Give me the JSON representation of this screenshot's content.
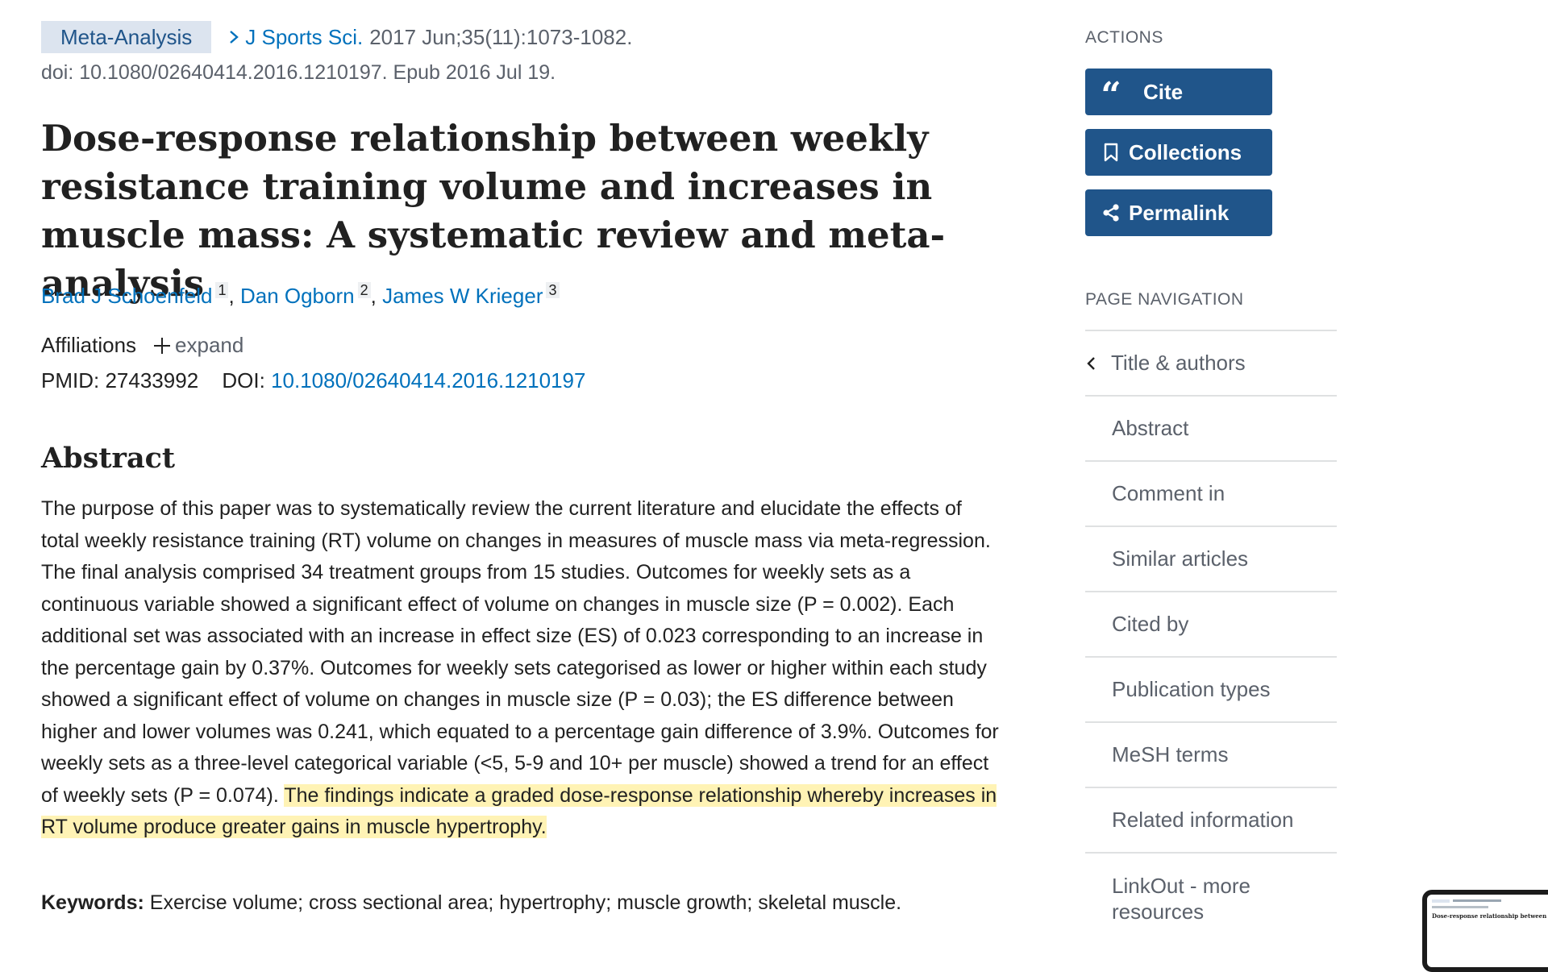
{
  "citation": {
    "publication_type": "Meta-Analysis",
    "journal": "J Sports Sci.",
    "journal_info": "2017 Jun;35(11):1073-1082.",
    "doi_line": "doi: 10.1080/02640414.2016.1210197. Epub 2016 Jul 19."
  },
  "title": "Dose-response relationship between weekly resistance training volume and increases in muscle mass: A systematic review and meta-analysis",
  "authors": [
    {
      "name": "Brad J Schoenfeld",
      "affiliation": "1"
    },
    {
      "name": "Dan Ogborn",
      "affiliation": "2"
    },
    {
      "name": "James W Krieger",
      "affiliation": "3"
    }
  ],
  "author_separator": ",",
  "affiliations": {
    "label": "Affiliations",
    "expand": "expand"
  },
  "identifiers": {
    "pmid_label": "PMID:",
    "pmid": "27433992",
    "doi_label": "DOI:",
    "doi": "10.1080/02640414.2016.1210197"
  },
  "abstract": {
    "heading": "Abstract",
    "text": "The purpose of this paper was to systematically review the current literature and elucidate the effects of total weekly resistance training (RT) volume on changes in measures of muscle mass via meta-regression. The final analysis comprised 34 treatment groups from 15 studies. Outcomes for weekly sets as a continuous variable showed a significant effect of volume on changes in muscle size (P = 0.002). Each additional set was associated with an increase in effect size (ES) of 0.023 corresponding to an increase in the percentage gain by 0.37%. Outcomes for weekly sets categorised as lower or higher within each study showed a significant effect of volume on changes in muscle size (P = 0.03); the ES difference between higher and lower volumes was 0.241, which equated to a percentage gain difference of 3.9%. Outcomes for weekly sets as a three-level categorical variable (<5, 5-9 and 10+ per muscle) showed a trend for an effect of weekly sets (P = 0.074). ",
    "highlighted": "The findings indicate a graded dose-response relationship whereby increases in RT volume produce greater gains in muscle hypertrophy."
  },
  "keywords": {
    "label": "Keywords:",
    "text": "Exercise volume; cross sectional area; hypertrophy; muscle growth; skeletal muscle."
  },
  "sidebar": {
    "actions_label": "ACTIONS",
    "actions": [
      {
        "label": "Cite",
        "icon": "quote-icon"
      },
      {
        "label": "Collections",
        "icon": "bookmark-icon"
      },
      {
        "label": "Permalink",
        "icon": "share-icon"
      }
    ],
    "nav_label": "PAGE NAVIGATION",
    "nav_items": [
      "Title & authors",
      "Abstract",
      "Comment in",
      "Similar articles",
      "Cited by",
      "Publication types",
      "MeSH terms",
      "Related information",
      "LinkOut - more resources"
    ]
  },
  "colors": {
    "link": "#0071bc",
    "button": "#20558a",
    "pubtype_bg": "#dce4ef",
    "highlight": "#fff3b5"
  }
}
